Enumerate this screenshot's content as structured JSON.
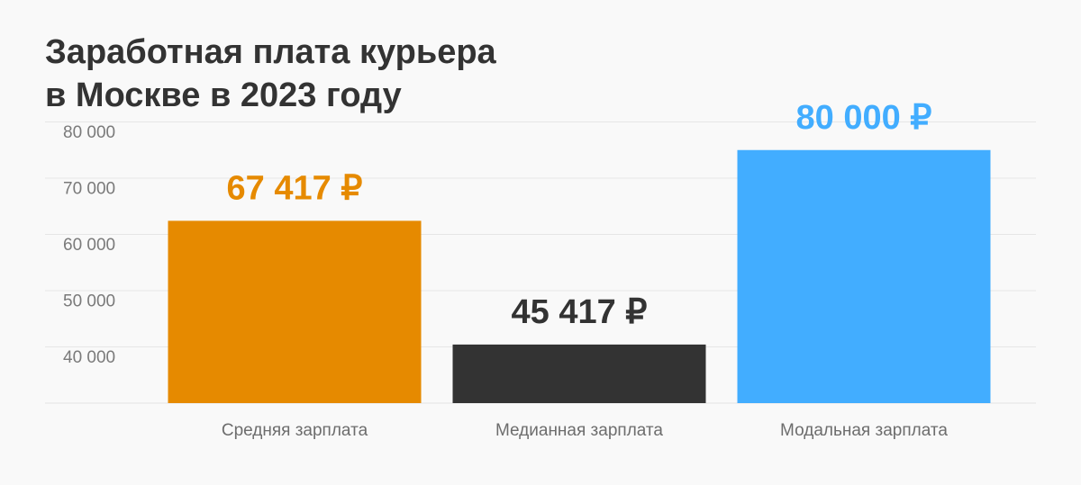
{
  "chart_data": {
    "type": "bar",
    "title": [
      "Заработная плата курьера",
      "в Москве в 2023 году"
    ],
    "categories": [
      "Средняя зарплата",
      "Медианная зарплата",
      "Модальная зарплата"
    ],
    "values": [
      67417,
      45417,
      80000
    ],
    "value_labels": [
      "67 417 ₽",
      "45 417 ₽",
      "80 000 ₽"
    ],
    "colors": [
      "#e68a00",
      "#333333",
      "#42adff"
    ],
    "yticks": [
      40000,
      50000,
      60000,
      70000,
      80000
    ],
    "ytick_labels": [
      "40 000",
      "50 000",
      "60 000",
      "70 000",
      "80 000"
    ],
    "ylim": [
      35000,
      80000
    ],
    "grid": true,
    "xlabel": "",
    "ylabel": ""
  }
}
